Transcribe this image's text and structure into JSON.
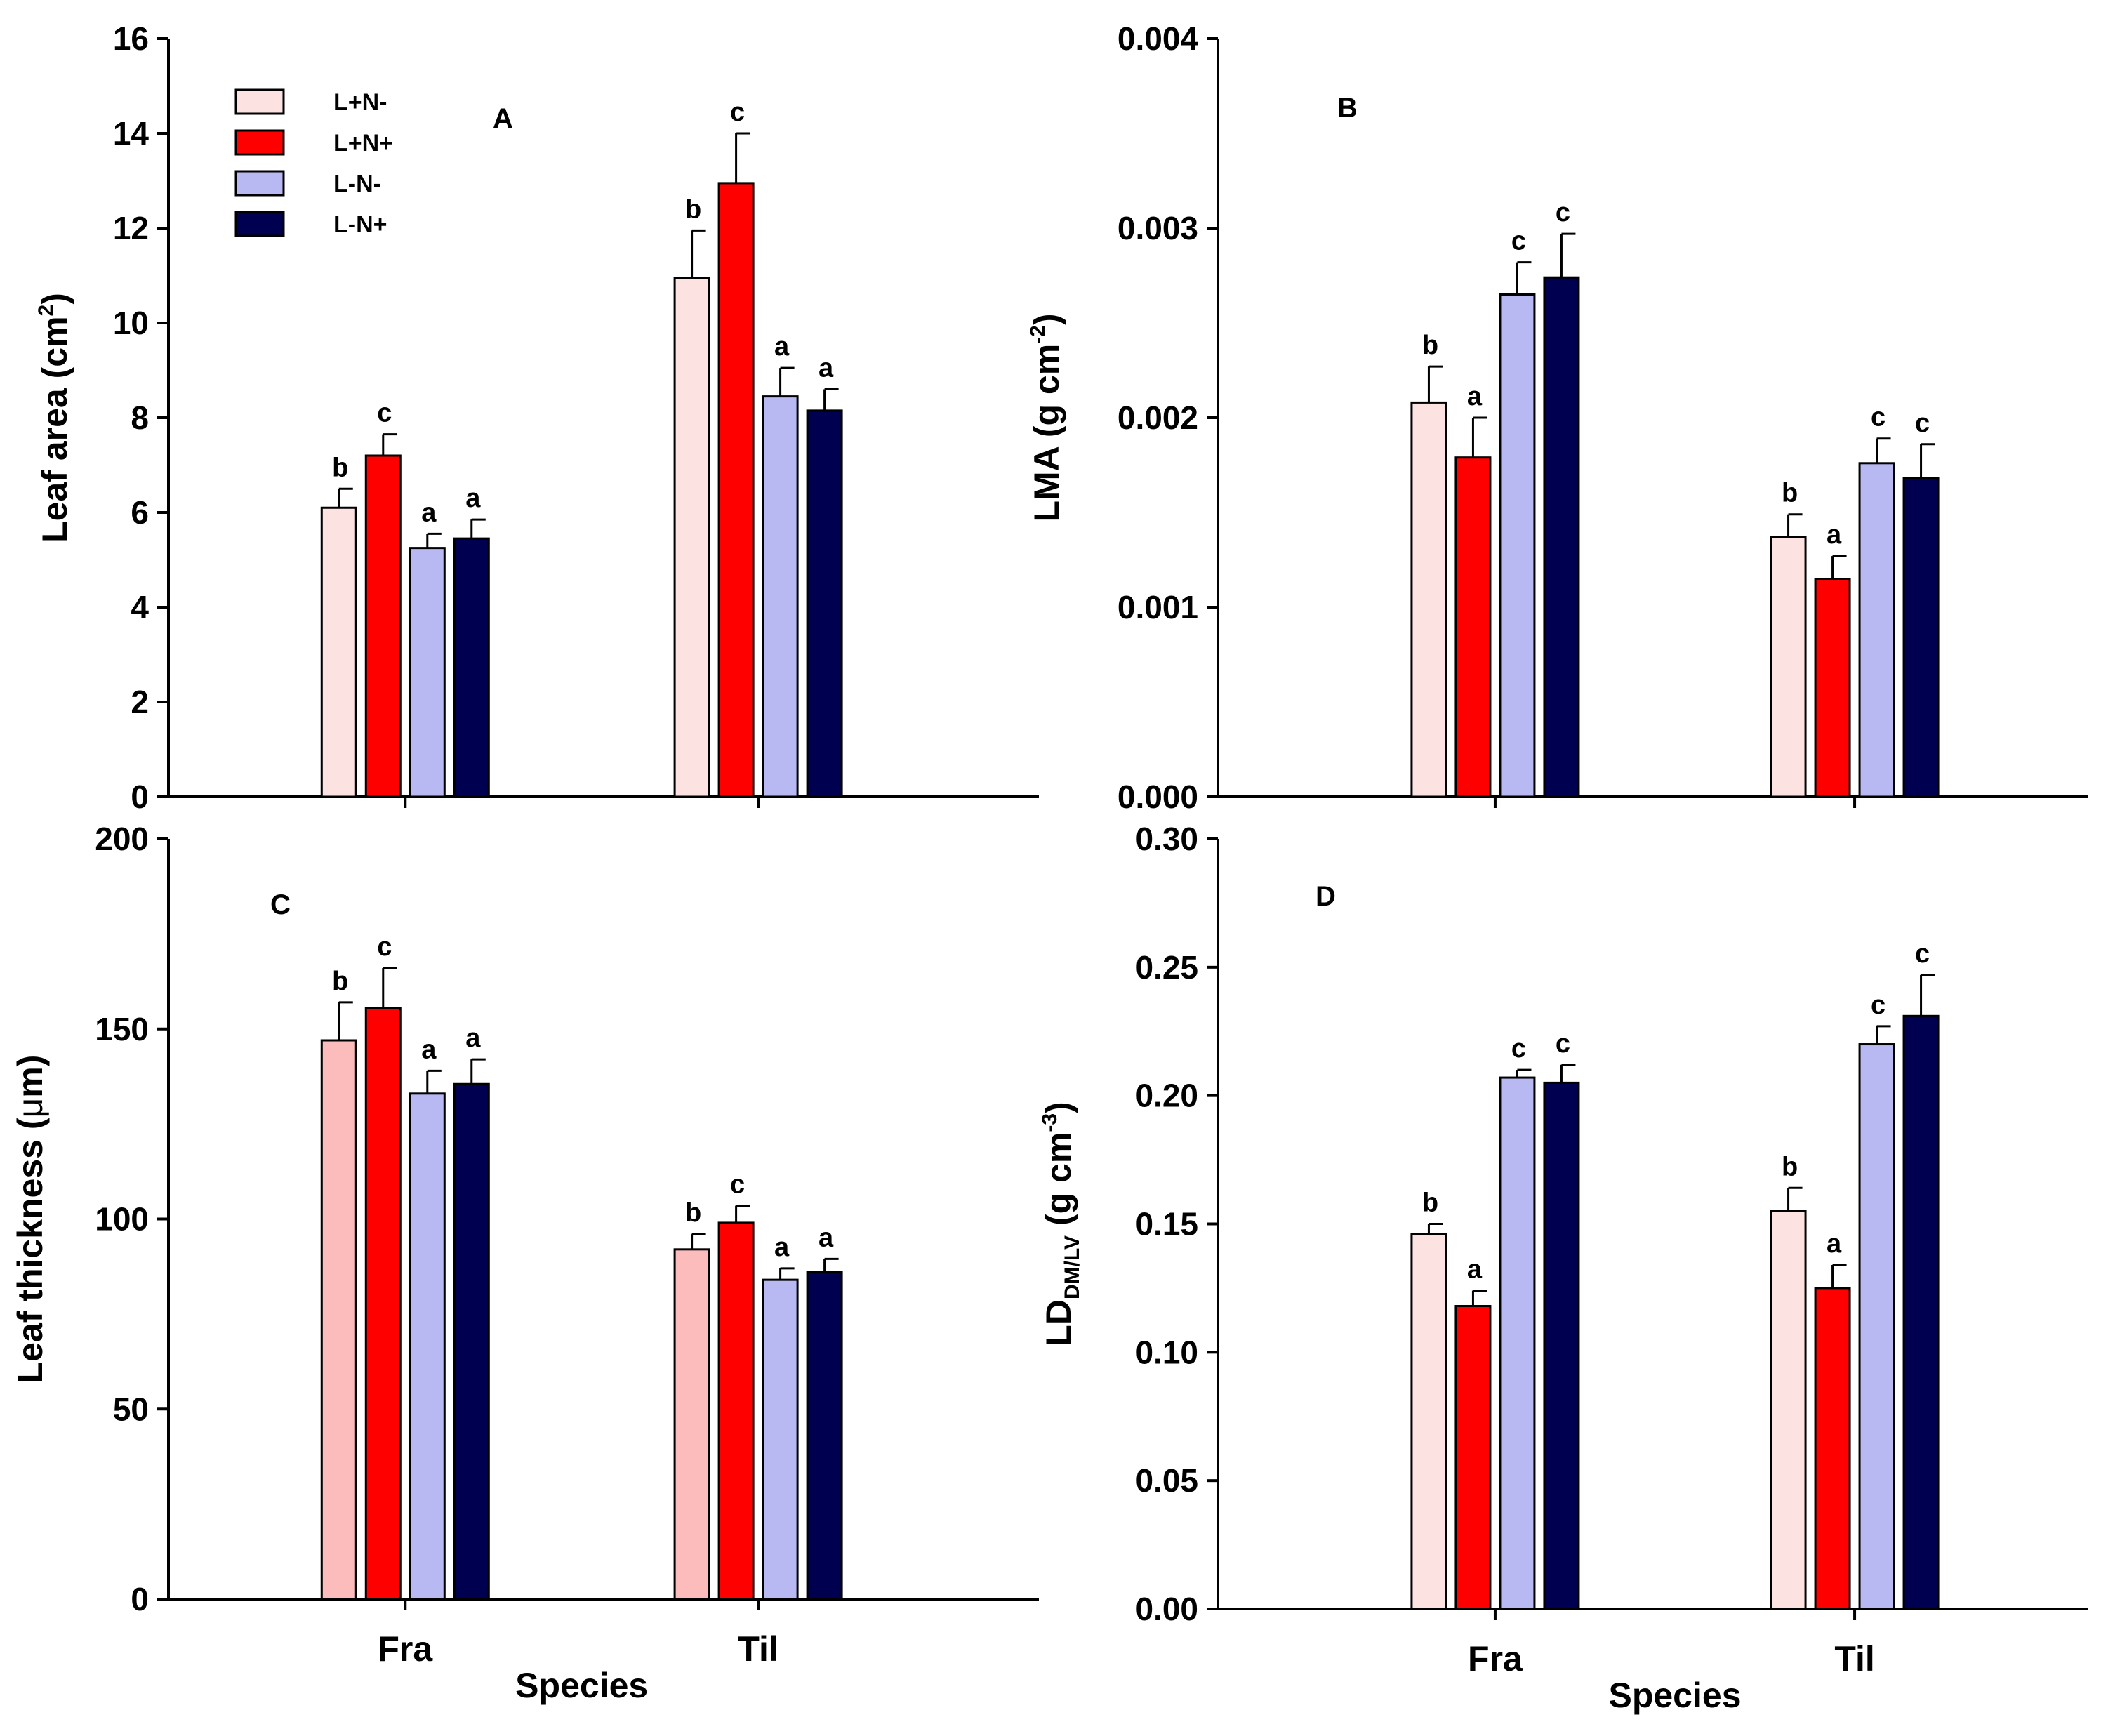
{
  "legend": [
    {
      "label": "L+N-",
      "color": "#fde2e2"
    },
    {
      "label": "L+N+",
      "color": "#ff0000"
    },
    {
      "label": "L-N-",
      "color": "#b8b8f2"
    },
    {
      "label": "L-N+",
      "color": "#000050"
    }
  ],
  "chart_data": [
    {
      "type": "bar",
      "panel": "A",
      "ylabel": "Leaf area (cm",
      "ylabel_sup": "2",
      "ylabel_tail": ")",
      "ylim": [
        0,
        16
      ],
      "yticks": [
        "0",
        "2",
        "4",
        "6",
        "8",
        "10",
        "12",
        "14",
        "16"
      ],
      "xlabel": "",
      "categories": [
        "Fra",
        "Til"
      ],
      "series": [
        {
          "name": "L+N-",
          "color": "#fde2e2",
          "values": [
            6.1,
            10.95
          ],
          "errors": [
            0.4,
            1.0
          ],
          "letters": [
            "b",
            "b"
          ]
        },
        {
          "name": "L+N+",
          "color": "#ff0000",
          "values": [
            7.2,
            12.95
          ],
          "errors": [
            0.45,
            1.05
          ],
          "letters": [
            "c",
            "c"
          ]
        },
        {
          "name": "L-N-",
          "color": "#b8b8f2",
          "values": [
            5.25,
            8.45
          ],
          "errors": [
            0.3,
            0.6
          ],
          "letters": [
            "a",
            "a"
          ]
        },
        {
          "name": "L-N+",
          "color": "#000050",
          "values": [
            5.45,
            8.15
          ],
          "errors": [
            0.4,
            0.45
          ],
          "letters": [
            "a",
            "a"
          ]
        }
      ]
    },
    {
      "type": "bar",
      "panel": "B",
      "ylabel": "LMA (g cm",
      "ylabel_sup": "-2",
      "ylabel_tail": ")",
      "ylim": [
        0,
        0.004
      ],
      "yticks": [
        "0.000",
        "0.001",
        "0.002",
        "0.003",
        "0.004"
      ],
      "xlabel": "",
      "categories": [
        "Fra",
        "Til"
      ],
      "series": [
        {
          "name": "L+N-",
          "color": "#fde2e2",
          "values": [
            0.00208,
            0.00137
          ],
          "errors": [
            0.00019,
            0.00012
          ],
          "letters": [
            "b",
            "b"
          ]
        },
        {
          "name": "L+N+",
          "color": "#ff0000",
          "values": [
            0.00179,
            0.00115
          ],
          "errors": [
            0.00021,
            0.00012
          ],
          "letters": [
            "a",
            "a"
          ]
        },
        {
          "name": "L-N-",
          "color": "#b8b8f2",
          "values": [
            0.00265,
            0.00176
          ],
          "errors": [
            0.00017,
            0.00013
          ],
          "letters": [
            "c",
            "c"
          ]
        },
        {
          "name": "L-N+",
          "color": "#000050",
          "values": [
            0.00274,
            0.00168
          ],
          "errors": [
            0.00023,
            0.00018
          ],
          "letters": [
            "c",
            "c"
          ]
        }
      ]
    },
    {
      "type": "bar",
      "panel": "C",
      "ylabel": "Leaf thickness (",
      "ylabel_mu": "μ",
      "ylabel_tail": "m)",
      "ylim": [
        0,
        200
      ],
      "yticks": [
        "0",
        "50",
        "100",
        "150",
        "200"
      ],
      "xlabel": "Species",
      "categories": [
        "Fra",
        "Til"
      ],
      "series": [
        {
          "name": "L+N-",
          "color": "#fcbcbc",
          "values": [
            147,
            92
          ],
          "errors": [
            10,
            4
          ],
          "letters": [
            "b",
            "b"
          ]
        },
        {
          "name": "L+N+",
          "color": "#ff0000",
          "values": [
            155.5,
            99
          ],
          "errors": [
            10.5,
            4.5
          ],
          "letters": [
            "c",
            "c"
          ]
        },
        {
          "name": "L-N-",
          "color": "#b8b8f2",
          "values": [
            133,
            84
          ],
          "errors": [
            6,
            3
          ],
          "letters": [
            "a",
            "a"
          ]
        },
        {
          "name": "L-N+",
          "color": "#000050",
          "values": [
            135.5,
            86
          ],
          "errors": [
            6.5,
            3.5
          ],
          "letters": [
            "a",
            "a"
          ]
        }
      ]
    },
    {
      "type": "bar",
      "panel": "D",
      "ylabel": "LD",
      "ylabel_sub": "DM/LV",
      "ylabel_mid": " (g cm",
      "ylabel_sup": "-3",
      "ylabel_tail": ")",
      "ylim": [
        0,
        0.3
      ],
      "yticks": [
        "0.00",
        "0.05",
        "0.10",
        "0.15",
        "0.20",
        "0.25",
        "0.30"
      ],
      "xlabel": "Species",
      "categories": [
        "Fra",
        "Til"
      ],
      "series": [
        {
          "name": "L+N-",
          "color": "#fde2e2",
          "values": [
            0.146,
            0.155
          ],
          "errors": [
            0.004,
            0.009
          ],
          "letters": [
            "b",
            "b"
          ]
        },
        {
          "name": "L+N+",
          "color": "#ff0000",
          "values": [
            0.118,
            0.125
          ],
          "errors": [
            0.006,
            0.009
          ],
          "letters": [
            "a",
            "a"
          ]
        },
        {
          "name": "L-N-",
          "color": "#b8b8f2",
          "values": [
            0.207,
            0.22
          ],
          "errors": [
            0.003,
            0.007
          ],
          "letters": [
            "c",
            "c"
          ]
        },
        {
          "name": "L-N+",
          "color": "#000050",
          "values": [
            0.205,
            0.231
          ],
          "errors": [
            0.007,
            0.016
          ],
          "letters": [
            "c",
            "c"
          ]
        }
      ]
    }
  ]
}
